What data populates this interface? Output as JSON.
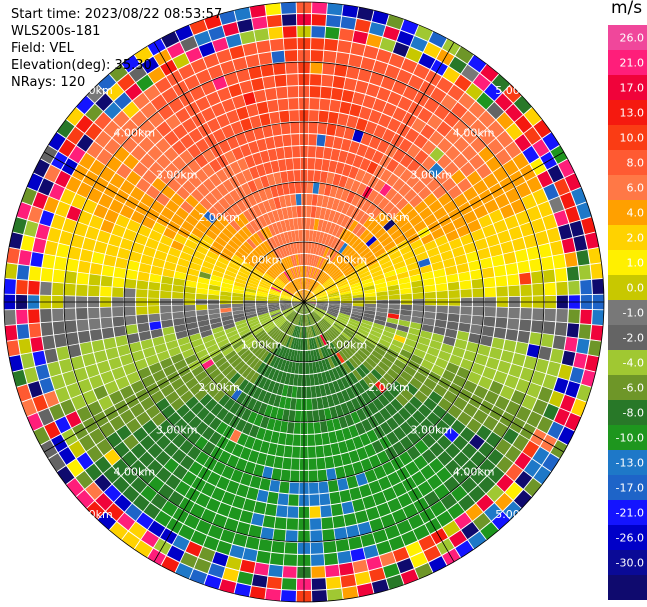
{
  "header": {
    "start_time": "Start time: 2023/08/22 08:53:57",
    "instrument": "WLS200s-181",
    "field": "Field: VEL",
    "elevation": "Elevation(deg): 35.30",
    "nrays": "NRays: 120"
  },
  "colorbar": {
    "unit": "m/s",
    "ticks": [
      "26.0",
      "21.0",
      "17.0",
      "13.0",
      "10.0",
      "8.0",
      "6.0",
      "4.0",
      "2.0",
      "1.0",
      "0.0",
      "-1.0",
      "-2.0",
      "-4.0",
      "-6.0",
      "-8.0",
      "-10.0",
      "-13.0",
      "-17.0",
      "-21.0",
      "-26.0",
      "-30.0"
    ],
    "colors": [
      "#f0479b",
      "#ff1e7a",
      "#f0033a",
      "#f5190f",
      "#fa3c14",
      "#ff5a32",
      "#ff7846",
      "#ffa000",
      "#ffd200",
      "#fff000",
      "#c8c800",
      "#787878",
      "#646464",
      "#a0c832",
      "#6e9628",
      "#287828",
      "#1e961e",
      "#1e78c8",
      "#1e64c8",
      "#1414ff",
      "#0000c8",
      "#0a0a96",
      "#0f0a6e"
    ]
  },
  "chart_data": {
    "type": "ppi",
    "field": "VEL",
    "unit": "m/s",
    "elevation_deg": 35.3,
    "nrays": 120,
    "range_rings_km": [
      1,
      2,
      3,
      4,
      5
    ],
    "ring_labels": [
      "1.00km",
      "2.00km",
      "3.00km",
      "4.00km",
      "5.00km"
    ],
    "value_min": -30,
    "value_max": 26,
    "mean_wind_profile": {
      "direction_sector_positive": "north",
      "direction_sector_negative": "south",
      "peak_speed_ms": 10,
      "noise_beyond_km": 4.5
    }
  }
}
